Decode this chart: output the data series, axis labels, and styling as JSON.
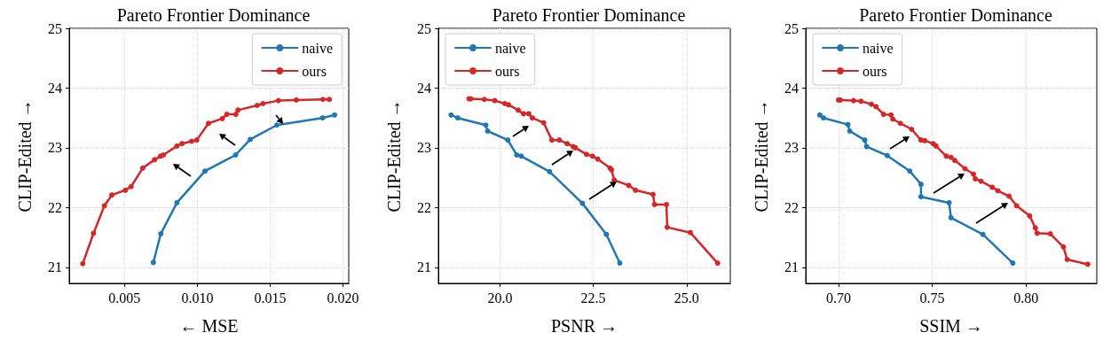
{
  "chart_data": [
    {
      "type": "line",
      "title": "Pareto Frontier Dominance",
      "xlabel": "← MSE",
      "ylabel": "CLIP-Edited →",
      "xlim": [
        0.0012,
        0.0204
      ],
      "ylim": [
        20.73,
        25
      ],
      "xticks": [
        {
          "value": 0.005,
          "label": "0.005"
        },
        {
          "value": 0.01,
          "label": "0.010"
        },
        {
          "value": 0.015,
          "label": "0.015"
        },
        {
          "value": 0.02,
          "label": "0.020"
        }
      ],
      "yticks": [
        21,
        22,
        23,
        24,
        25
      ],
      "grid": true,
      "legend": "top right",
      "marker": "circle",
      "line_style": "solid",
      "series": [
        {
          "name": "naive",
          "color": "#1f77b4",
          "x": [
            0.00698,
            0.00749,
            0.0086,
            0.01053,
            0.01263,
            0.01364,
            0.01546,
            0.0186,
            0.01943
          ],
          "values": [
            21.08,
            21.56,
            22.08,
            22.61,
            22.88,
            23.14,
            23.38,
            23.5,
            23.55
          ]
        },
        {
          "name": "ours",
          "color": "#d62728",
          "x": [
            0.00213,
            0.00287,
            0.00362,
            0.00413,
            0.00506,
            0.00545,
            0.00625,
            0.00706,
            0.00747,
            0.00767,
            0.0086,
            0.00895,
            0.00961,
            0.00996,
            0.01077,
            0.01172,
            0.01202,
            0.01265,
            0.01279,
            0.01411,
            0.01451,
            0.01557,
            0.0168,
            0.01862,
            0.01907
          ],
          "values": [
            21.06,
            21.57,
            22.03,
            22.21,
            22.29,
            22.35,
            22.66,
            22.8,
            22.86,
            22.88,
            23.03,
            23.07,
            23.11,
            23.13,
            23.41,
            23.49,
            23.56,
            23.56,
            23.63,
            23.71,
            23.74,
            23.79,
            23.8,
            23.81,
            23.81
          ]
        }
      ]
    },
    {
      "type": "line",
      "title": "Pareto Frontier Dominance",
      "xlabel": "PSNR →",
      "ylabel": "CLIP-Edited →",
      "xlim": [
        18.35,
        26.17
      ],
      "ylim": [
        20.73,
        25
      ],
      "xticks": [
        {
          "value": 20,
          "label": "20.0"
        },
        {
          "value": 22.5,
          "label": "22.5"
        },
        {
          "value": 25,
          "label": "25.0"
        }
      ],
      "yticks": [
        21,
        22,
        23,
        24,
        25
      ],
      "grid": true,
      "legend": "top left",
      "marker": "circle",
      "line_style": "solid",
      "series": [
        {
          "name": "naive",
          "color": "#1f77b4",
          "x": [
            18.69,
            18.87,
            19.62,
            19.67,
            20.21,
            20.45,
            20.57,
            21.33,
            22.21,
            22.85,
            23.21
          ],
          "values": [
            23.55,
            23.5,
            23.38,
            23.28,
            23.13,
            22.88,
            22.86,
            22.6,
            22.07,
            21.55,
            21.07
          ]
        },
        {
          "name": "ours",
          "color": "#d62728",
          "x": [
            19.17,
            19.22,
            19.58,
            19.86,
            20.13,
            20.23,
            20.49,
            20.63,
            20.77,
            20.87,
            21.17,
            21.39,
            21.59,
            21.8,
            21.96,
            22.02,
            22.32,
            22.48,
            22.62,
            22.95,
            22.99,
            23.06,
            23.45,
            23.63,
            24.1,
            24.14,
            24.46,
            24.48,
            25.1,
            25.83
          ],
          "values": [
            23.82,
            23.82,
            23.81,
            23.79,
            23.74,
            23.72,
            23.63,
            23.57,
            23.57,
            23.5,
            23.42,
            23.13,
            23.13,
            23.07,
            23.02,
            23.0,
            22.89,
            22.86,
            22.81,
            22.66,
            22.63,
            22.46,
            22.37,
            22.29,
            22.22,
            22.05,
            22.05,
            21.67,
            21.58,
            21.07
          ]
        }
      ]
    },
    {
      "type": "line",
      "title": "Pareto Frontier Dominance",
      "xlabel": "SSIM →",
      "ylabel": "CLIP-Edited →",
      "xlim": [
        0.6825,
        0.8378
      ],
      "ylim": [
        20.73,
        25
      ],
      "xticks": [
        {
          "value": 0.7,
          "label": "0.70"
        },
        {
          "value": 0.75,
          "label": "0.75"
        },
        {
          "value": 0.8,
          "label": "0.80"
        }
      ],
      "yticks": [
        21,
        22,
        23,
        24,
        25
      ],
      "grid": true,
      "legend": "top left",
      "marker": "circle",
      "line_style": "solid",
      "series": [
        {
          "name": "naive",
          "color": "#1f77b4",
          "x": [
            0.69,
            0.692,
            0.705,
            0.706,
            0.714,
            0.715,
            0.726,
            0.738,
            0.744,
            0.744,
            0.759,
            0.76,
            0.777,
            0.793
          ],
          "values": [
            23.55,
            23.5,
            23.39,
            23.28,
            23.13,
            23.02,
            22.87,
            22.61,
            22.39,
            22.18,
            22.08,
            21.83,
            21.55,
            21.07
          ]
        },
        {
          "name": "ours",
          "color": "#d62728",
          "x": [
            0.7,
            0.701,
            0.708,
            0.712,
            0.7175,
            0.72,
            0.724,
            0.728,
            0.729,
            0.733,
            0.739,
            0.744,
            0.746,
            0.7505,
            0.752,
            0.7575,
            0.76,
            0.762,
            0.7675,
            0.772,
            0.773,
            0.776,
            0.782,
            0.785,
            0.791,
            0.795,
            0.802,
            0.805,
            0.806,
            0.813,
            0.82,
            0.822,
            0.833
          ],
          "values": [
            23.8,
            23.8,
            23.79,
            23.78,
            23.73,
            23.69,
            23.56,
            23.55,
            23.48,
            23.41,
            23.31,
            23.13,
            23.12,
            23.07,
            23.03,
            22.86,
            22.84,
            22.79,
            22.65,
            22.56,
            22.48,
            22.44,
            22.34,
            22.28,
            22.19,
            22.03,
            21.86,
            21.66,
            21.57,
            21.56,
            21.34,
            21.13,
            21.05
          ]
        }
      ]
    }
  ]
}
